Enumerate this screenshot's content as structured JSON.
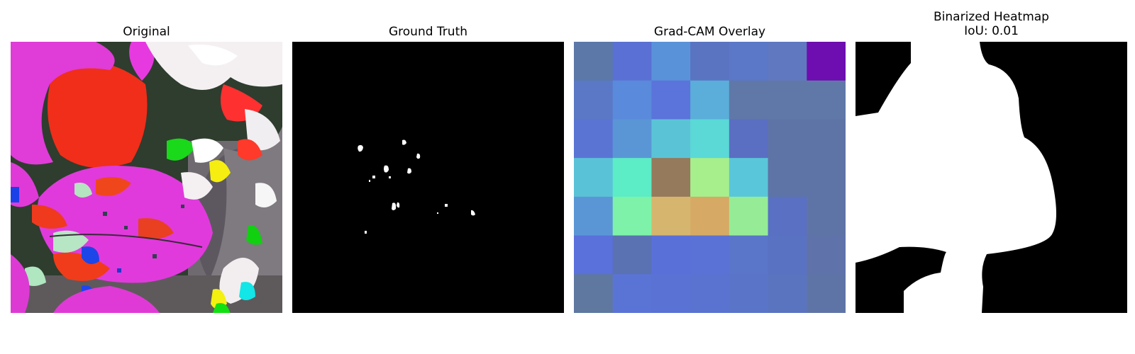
{
  "panels": {
    "original": {
      "title": "Original"
    },
    "ground_truth": {
      "title": "Ground Truth"
    },
    "gradcam": {
      "title": "Grad-CAM Overlay",
      "grid_colors": [
        [
          "#5b78a8",
          "#5a70d4",
          "#5a92d9",
          "#5a74c2",
          "#5b78c8",
          "#6078c0",
          "#6e0db0"
        ],
        [
          "#5a78c5",
          "#5a8adb",
          "#5a74db",
          "#5aaed9",
          "#5f78a8",
          "#6078a8",
          "#6078a8"
        ],
        [
          "#5a74d4",
          "#5a96d6",
          "#5ac4d6",
          "#5ad9d6",
          "#5a6ec2",
          "#5f74a6",
          "#5f74a6"
        ],
        [
          "#5ac2d6",
          "#5cecc6",
          "#957a5c",
          "#a6ef8c",
          "#5ac6d9",
          "#5f74a6",
          "#5f74a6"
        ],
        [
          "#5a96d6",
          "#7ef2a8",
          "#d6b66e",
          "#d6aa64",
          "#96ec96",
          "#5a70c2",
          "#5f74a6"
        ],
        [
          "#5a70db",
          "#5a72b2",
          "#5a70d9",
          "#5a72d6",
          "#5a76c8",
          "#5a72c2",
          "#5f72aa"
        ],
        [
          "#5f78a0",
          "#5a74d6",
          "#5a72d4",
          "#5a72d0",
          "#5a74c8",
          "#5a74c0",
          "#5f74a6"
        ]
      ]
    },
    "binarized": {
      "title_line1": "Binarized Heatmap",
      "title_line2": "IoU: 0.01"
    }
  }
}
